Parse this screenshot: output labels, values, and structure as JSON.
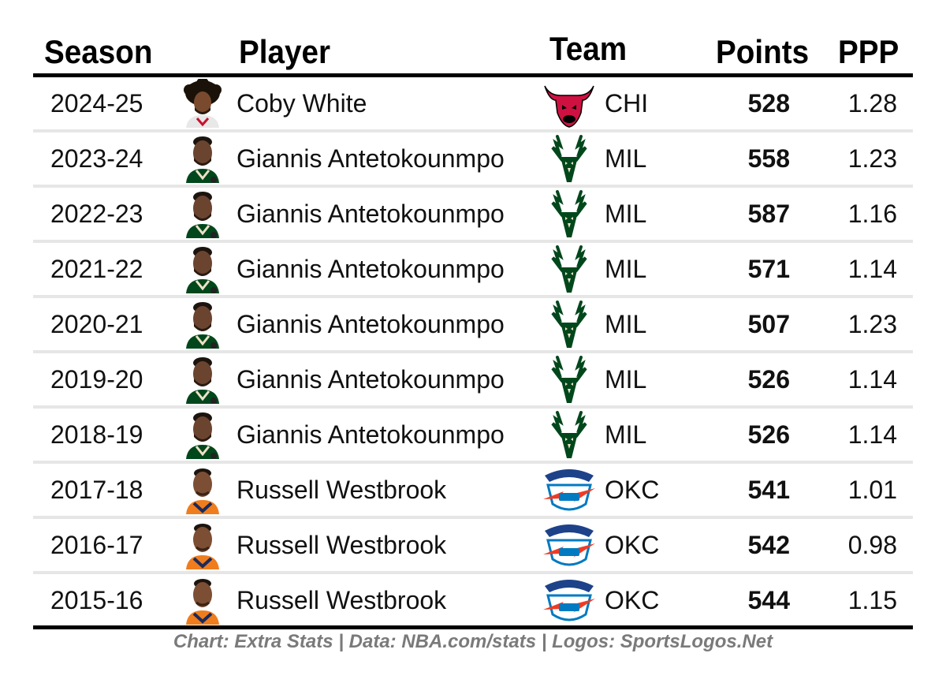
{
  "chart_data": {
    "type": "table",
    "columns": [
      "Season",
      "Player",
      "Team",
      "Points",
      "PPP"
    ],
    "rows": [
      {
        "season": "2024-25",
        "player": "Coby White",
        "team": "CHI",
        "points": "528",
        "ppp": "1.28",
        "face_icon": "coby-white-headshot-icon",
        "logo_icon": "chicago-bulls-logo-icon"
      },
      {
        "season": "2023-24",
        "player": "Giannis Antetokounmpo",
        "team": "MIL",
        "points": "558",
        "ppp": "1.23",
        "face_icon": "giannis-headshot-icon",
        "logo_icon": "milwaukee-bucks-logo-icon"
      },
      {
        "season": "2022-23",
        "player": "Giannis Antetokounmpo",
        "team": "MIL",
        "points": "587",
        "ppp": "1.16",
        "face_icon": "giannis-headshot-icon",
        "logo_icon": "milwaukee-bucks-logo-icon"
      },
      {
        "season": "2021-22",
        "player": "Giannis Antetokounmpo",
        "team": "MIL",
        "points": "571",
        "ppp": "1.14",
        "face_icon": "giannis-headshot-icon",
        "logo_icon": "milwaukee-bucks-logo-icon"
      },
      {
        "season": "2020-21",
        "player": "Giannis Antetokounmpo",
        "team": "MIL",
        "points": "507",
        "ppp": "1.23",
        "face_icon": "giannis-headshot-icon",
        "logo_icon": "milwaukee-bucks-logo-icon"
      },
      {
        "season": "2019-20",
        "player": "Giannis Antetokounmpo",
        "team": "MIL",
        "points": "526",
        "ppp": "1.14",
        "face_icon": "giannis-headshot-icon",
        "logo_icon": "milwaukee-bucks-logo-icon"
      },
      {
        "season": "2018-19",
        "player": "Giannis Antetokounmpo",
        "team": "MIL",
        "points": "526",
        "ppp": "1.14",
        "face_icon": "giannis-headshot-icon",
        "logo_icon": "milwaukee-bucks-logo-icon"
      },
      {
        "season": "2017-18",
        "player": "Russell Westbrook",
        "team": "OKC",
        "points": "541",
        "ppp": "1.01",
        "face_icon": "westbrook-headshot-icon",
        "logo_icon": "okc-thunder-logo-icon"
      },
      {
        "season": "2016-17",
        "player": "Russell Westbrook",
        "team": "OKC",
        "points": "542",
        "ppp": "0.98",
        "face_icon": "westbrook-headshot-icon",
        "logo_icon": "okc-thunder-logo-icon"
      },
      {
        "season": "2015-16",
        "player": "Russell Westbrook",
        "team": "OKC",
        "points": "544",
        "ppp": "1.15",
        "face_icon": "westbrook-headshot-icon",
        "logo_icon": "okc-thunder-logo-icon"
      }
    ],
    "footer": "Chart: Extra Stats | Data: NBA.com/stats | Logos: SportsLogos.Net"
  },
  "colors": {
    "bulls_red": "#ce1141",
    "bucks_green": "#00471b",
    "thunder_blue": "#007ac1",
    "thunder_orange": "#ef3b24",
    "row_separator": "#e6e6e6",
    "footer_text": "#7a7a7a"
  }
}
